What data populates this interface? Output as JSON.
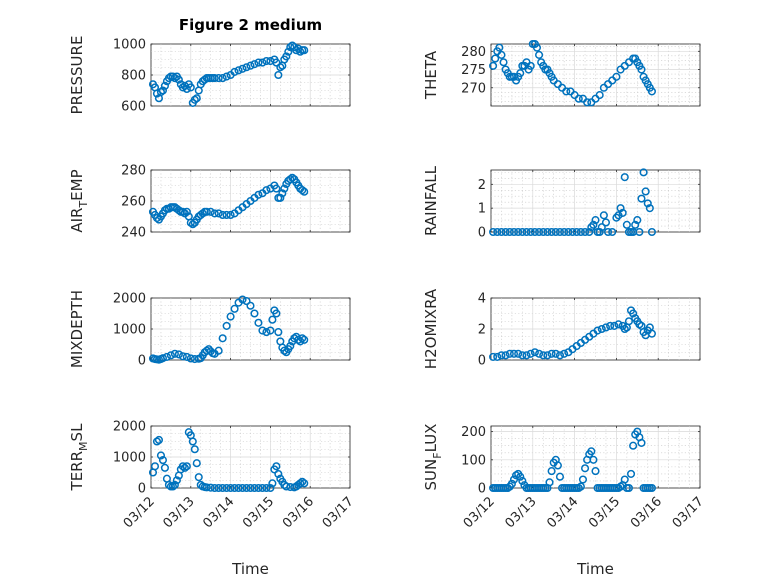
{
  "style": {
    "marker_color": "#0072BD",
    "axis_color": "#262626",
    "grid_color": "#d9d9d9"
  },
  "chart_data": [
    {
      "type": "scatter",
      "title": "Figure 2 medium",
      "ylabel": "PRESSURE",
      "xlabel": "",
      "ylim": [
        600,
        1000
      ],
      "yticks": [
        600,
        800,
        1000
      ],
      "xlim": [
        0,
        5
      ],
      "xticks": [
        "03/12",
        "03/13",
        "03/14",
        "03/15",
        "03/16",
        "03/17"
      ],
      "x": [
        0.05,
        0.1,
        0.15,
        0.2,
        0.25,
        0.3,
        0.35,
        0.4,
        0.45,
        0.5,
        0.55,
        0.6,
        0.65,
        0.7,
        0.75,
        0.8,
        0.85,
        0.9,
        0.95,
        1.0,
        1.05,
        1.1,
        1.15,
        1.2,
        1.25,
        1.3,
        1.35,
        1.4,
        1.45,
        1.5,
        1.55,
        1.6,
        1.7,
        1.8,
        1.9,
        2.0,
        2.1,
        2.2,
        2.3,
        2.4,
        2.5,
        2.6,
        2.7,
        2.8,
        2.9,
        3.0,
        3.1,
        3.15,
        3.2,
        3.25,
        3.3,
        3.35,
        3.4,
        3.45,
        3.5,
        3.55,
        3.6,
        3.65,
        3.7,
        3.75,
        3.8,
        3.85
      ],
      "y": [
        740,
        720,
        680,
        650,
        690,
        700,
        730,
        760,
        780,
        790,
        790,
        780,
        790,
        770,
        740,
        720,
        730,
        710,
        740,
        720,
        620,
        640,
        650,
        700,
        740,
        760,
        770,
        780,
        780,
        780,
        780,
        780,
        780,
        780,
        790,
        800,
        820,
        830,
        840,
        850,
        860,
        870,
        880,
        880,
        890,
        890,
        900,
        880,
        800,
        850,
        860,
        900,
        920,
        950,
        980,
        990,
        980,
        960,
        970,
        950,
        960,
        960
      ]
    },
    {
      "type": "scatter",
      "ylabel": "THETA",
      "xlabel": "",
      "ylim": [
        265,
        282
      ],
      "yticks": [
        270,
        275,
        280
      ],
      "xlim": [
        0,
        5
      ],
      "xticks": [
        "03/12",
        "03/13",
        "03/14",
        "03/15",
        "03/16",
        "03/17"
      ],
      "x": [
        0.05,
        0.1,
        0.15,
        0.2,
        0.25,
        0.3,
        0.35,
        0.4,
        0.45,
        0.5,
        0.55,
        0.6,
        0.65,
        0.7,
        0.75,
        0.8,
        0.85,
        0.9,
        0.95,
        1.0,
        1.05,
        1.1,
        1.15,
        1.2,
        1.25,
        1.3,
        1.35,
        1.4,
        1.45,
        1.5,
        1.6,
        1.7,
        1.8,
        1.9,
        2.0,
        2.1,
        2.2,
        2.3,
        2.4,
        2.5,
        2.6,
        2.7,
        2.8,
        2.9,
        3.0,
        3.1,
        3.2,
        3.3,
        3.4,
        3.45,
        3.5,
        3.55,
        3.6,
        3.65,
        3.7,
        3.75,
        3.8,
        3.85
      ],
      "y": [
        276,
        278,
        280,
        281,
        279,
        277,
        275,
        274,
        273,
        273,
        273,
        272,
        273,
        274,
        276,
        276,
        277,
        275,
        276,
        282,
        282,
        281,
        279,
        277,
        276,
        275,
        275,
        274,
        273,
        272,
        271,
        270,
        269,
        269,
        268,
        267,
        267,
        266,
        266,
        267,
        268,
        270,
        271,
        272,
        273,
        275,
        276,
        277,
        278,
        278,
        277,
        276,
        275,
        273,
        272,
        271,
        270,
        269
      ]
    },
    {
      "type": "scatter",
      "ylabel": "AIR_TEMP",
      "xlabel": "",
      "ylim": [
        240,
        280
      ],
      "yticks": [
        240,
        260,
        280
      ],
      "xlim": [
        0,
        5
      ],
      "xticks": [
        "03/12",
        "03/13",
        "03/14",
        "03/15",
        "03/16",
        "03/17"
      ],
      "x": [
        0.05,
        0.1,
        0.15,
        0.2,
        0.25,
        0.3,
        0.35,
        0.4,
        0.45,
        0.5,
        0.55,
        0.6,
        0.65,
        0.7,
        0.75,
        0.8,
        0.85,
        0.9,
        0.95,
        1.0,
        1.05,
        1.1,
        1.15,
        1.2,
        1.25,
        1.3,
        1.35,
        1.4,
        1.5,
        1.6,
        1.7,
        1.8,
        1.9,
        2.0,
        2.1,
        2.2,
        2.3,
        2.4,
        2.5,
        2.6,
        2.7,
        2.8,
        2.9,
        3.0,
        3.1,
        3.15,
        3.2,
        3.25,
        3.3,
        3.35,
        3.4,
        3.45,
        3.5,
        3.55,
        3.6,
        3.65,
        3.7,
        3.75,
        3.8,
        3.85
      ],
      "y": [
        253,
        251,
        249,
        248,
        250,
        252,
        254,
        255,
        255,
        256,
        256,
        256,
        255,
        254,
        253,
        253,
        252,
        253,
        250,
        246,
        245,
        246,
        248,
        250,
        251,
        252,
        253,
        253,
        253,
        252,
        252,
        251,
        251,
        251,
        252,
        254,
        256,
        258,
        260,
        262,
        264,
        265,
        267,
        268,
        270,
        268,
        262,
        262,
        265,
        268,
        271,
        273,
        274,
        275,
        274,
        272,
        270,
        268,
        267,
        266
      ]
    },
    {
      "type": "scatter",
      "ylabel": "RAINFALL",
      "xlabel": "",
      "ylim": [
        0,
        2.6
      ],
      "yticks": [
        0,
        1,
        2
      ],
      "xlim": [
        0,
        5
      ],
      "xticks": [
        "03/12",
        "03/13",
        "03/14",
        "03/15",
        "03/16",
        "03/17"
      ],
      "x": [
        0.05,
        0.15,
        0.25,
        0.35,
        0.45,
        0.55,
        0.65,
        0.75,
        0.85,
        0.95,
        1.05,
        1.15,
        1.25,
        1.35,
        1.45,
        1.55,
        1.65,
        1.75,
        1.85,
        1.95,
        2.05,
        2.15,
        2.25,
        2.35,
        2.4,
        2.45,
        2.5,
        2.55,
        2.6,
        2.65,
        2.7,
        2.75,
        2.8,
        2.9,
        3.0,
        3.05,
        3.1,
        3.15,
        3.2,
        3.25,
        3.3,
        3.35,
        3.4,
        3.45,
        3.5,
        3.55,
        3.6,
        3.65,
        3.7,
        3.75,
        3.8,
        3.85
      ],
      "y": [
        0,
        0,
        0,
        0,
        0,
        0,
        0,
        0,
        0,
        0,
        0,
        0,
        0,
        0,
        0,
        0,
        0,
        0,
        0,
        0,
        0,
        0,
        0,
        0,
        0.2,
        0.3,
        0.5,
        0,
        0,
        0.2,
        0.7,
        0.4,
        0,
        0,
        0.6,
        0.7,
        1.0,
        0.8,
        2.3,
        0.3,
        0,
        0,
        0,
        0.3,
        0.5,
        0,
        1.4,
        2.5,
        1.7,
        1.2,
        1.0,
        0
      ]
    },
    {
      "type": "scatter",
      "ylabel": "MIXDEPTH",
      "xlabel": "",
      "ylim": [
        0,
        2000
      ],
      "yticks": [
        0,
        1000,
        2000
      ],
      "xlim": [
        0,
        5
      ],
      "xticks": [
        "03/12",
        "03/13",
        "03/14",
        "03/15",
        "03/16",
        "03/17"
      ],
      "x": [
        0.05,
        0.1,
        0.15,
        0.2,
        0.25,
        0.3,
        0.4,
        0.5,
        0.6,
        0.7,
        0.8,
        0.9,
        1.0,
        1.1,
        1.2,
        1.25,
        1.3,
        1.35,
        1.4,
        1.45,
        1.5,
        1.55,
        1.6,
        1.7,
        1.8,
        1.9,
        2.0,
        2.1,
        2.2,
        2.3,
        2.4,
        2.5,
        2.6,
        2.7,
        2.8,
        2.9,
        3.0,
        3.05,
        3.1,
        3.15,
        3.2,
        3.25,
        3.3,
        3.35,
        3.4,
        3.45,
        3.5,
        3.55,
        3.6,
        3.65,
        3.7,
        3.75,
        3.8,
        3.85
      ],
      "y": [
        50,
        30,
        20,
        10,
        30,
        60,
        100,
        150,
        200,
        180,
        120,
        100,
        50,
        30,
        40,
        60,
        150,
        250,
        300,
        350,
        280,
        220,
        200,
        300,
        700,
        1100,
        1400,
        1650,
        1850,
        1950,
        1900,
        1750,
        1500,
        1200,
        950,
        900,
        950,
        1300,
        1600,
        1500,
        900,
        600,
        400,
        300,
        250,
        350,
        450,
        600,
        700,
        750,
        650,
        600,
        700,
        650
      ]
    },
    {
      "type": "scatter",
      "ylabel": "H2OMIXRA",
      "xlabel": "",
      "ylim": [
        0,
        4
      ],
      "yticks": [
        0,
        2,
        4
      ],
      "xlim": [
        0,
        5
      ],
      "xticks": [
        "03/12",
        "03/13",
        "03/14",
        "03/15",
        "03/16",
        "03/17"
      ],
      "x": [
        0.05,
        0.15,
        0.25,
        0.35,
        0.45,
        0.55,
        0.65,
        0.75,
        0.85,
        0.95,
        1.05,
        1.15,
        1.25,
        1.35,
        1.45,
        1.55,
        1.65,
        1.75,
        1.85,
        1.95,
        2.05,
        2.15,
        2.25,
        2.35,
        2.45,
        2.55,
        2.65,
        2.75,
        2.85,
        2.95,
        3.05,
        3.15,
        3.2,
        3.25,
        3.3,
        3.35,
        3.4,
        3.45,
        3.5,
        3.55,
        3.6,
        3.65,
        3.7,
        3.75,
        3.8,
        3.85
      ],
      "y": [
        0.2,
        0.2,
        0.3,
        0.3,
        0.4,
        0.4,
        0.4,
        0.3,
        0.3,
        0.4,
        0.5,
        0.4,
        0.3,
        0.3,
        0.4,
        0.4,
        0.3,
        0.4,
        0.5,
        0.7,
        0.9,
        1.1,
        1.3,
        1.5,
        1.7,
        1.9,
        2.0,
        2.1,
        2.2,
        2.2,
        2.3,
        2.2,
        2.0,
        2.1,
        2.5,
        3.2,
        3.0,
        2.7,
        2.5,
        2.3,
        2.2,
        1.8,
        1.6,
        1.9,
        2.1,
        1.7
      ]
    },
    {
      "type": "scatter",
      "ylabel": "TERR_MSL",
      "xlabel": "Time",
      "ylim": [
        0,
        2000
      ],
      "yticks": [
        0,
        1000,
        2000
      ],
      "xlim": [
        0,
        5
      ],
      "xticks": [
        "03/12",
        "03/13",
        "03/14",
        "03/15",
        "03/16",
        "03/17"
      ],
      "x": [
        0.05,
        0.1,
        0.15,
        0.2,
        0.25,
        0.3,
        0.35,
        0.4,
        0.45,
        0.5,
        0.55,
        0.6,
        0.65,
        0.7,
        0.75,
        0.8,
        0.85,
        0.9,
        0.95,
        1.0,
        1.05,
        1.1,
        1.15,
        1.2,
        1.25,
        1.3,
        1.35,
        1.4,
        1.5,
        1.6,
        1.7,
        1.8,
        1.9,
        2.0,
        2.1,
        2.2,
        2.3,
        2.4,
        2.5,
        2.6,
        2.7,
        2.8,
        2.9,
        3.0,
        3.05,
        3.1,
        3.15,
        3.2,
        3.25,
        3.3,
        3.35,
        3.4,
        3.5,
        3.6,
        3.65,
        3.7,
        3.75,
        3.8,
        3.85
      ],
      "y": [
        500,
        700,
        1500,
        1550,
        1050,
        900,
        650,
        300,
        100,
        50,
        50,
        100,
        250,
        400,
        600,
        700,
        650,
        700,
        1800,
        1700,
        1500,
        1250,
        800,
        350,
        100,
        50,
        30,
        20,
        10,
        0,
        0,
        0,
        0,
        0,
        0,
        0,
        0,
        0,
        0,
        0,
        0,
        0,
        0,
        0,
        150,
        600,
        700,
        450,
        300,
        200,
        100,
        50,
        30,
        20,
        50,
        100,
        150,
        200,
        150
      ]
    },
    {
      "type": "scatter",
      "ylabel": "SUN_FLUX",
      "xlabel": "Time",
      "ylim": [
        0,
        220
      ],
      "yticks": [
        0,
        100,
        200
      ],
      "xlim": [
        0,
        5
      ],
      "xticks": [
        "03/12",
        "03/13",
        "03/14",
        "03/15",
        "03/16",
        "03/17"
      ],
      "x": [
        0.05,
        0.1,
        0.15,
        0.2,
        0.25,
        0.3,
        0.35,
        0.4,
        0.45,
        0.5,
        0.55,
        0.6,
        0.65,
        0.7,
        0.75,
        0.8,
        0.85,
        0.9,
        0.95,
        1.0,
        1.05,
        1.1,
        1.15,
        1.2,
        1.25,
        1.3,
        1.35,
        1.4,
        1.45,
        1.5,
        1.55,
        1.6,
        1.65,
        1.7,
        1.75,
        1.8,
        1.85,
        1.9,
        1.95,
        2.0,
        2.05,
        2.1,
        2.15,
        2.2,
        2.25,
        2.3,
        2.35,
        2.4,
        2.45,
        2.5,
        2.55,
        2.6,
        2.65,
        2.7,
        2.75,
        2.8,
        2.85,
        2.9,
        2.95,
        3.0,
        3.05,
        3.1,
        3.15,
        3.2,
        3.25,
        3.3,
        3.35,
        3.4,
        3.45,
        3.5,
        3.55,
        3.6,
        3.65,
        3.7,
        3.75,
        3.8,
        3.85
      ],
      "y": [
        0,
        0,
        0,
        0,
        0,
        0,
        0,
        0,
        5,
        15,
        30,
        45,
        50,
        40,
        25,
        10,
        0,
        0,
        0,
        0,
        0,
        0,
        0,
        0,
        0,
        0,
        0,
        20,
        60,
        90,
        100,
        80,
        40,
        0,
        0,
        0,
        0,
        0,
        0,
        0,
        0,
        0,
        5,
        30,
        70,
        100,
        120,
        130,
        100,
        60,
        0,
        0,
        0,
        0,
        0,
        0,
        0,
        0,
        0,
        0,
        0,
        5,
        10,
        30,
        0,
        0,
        50,
        150,
        190,
        200,
        180,
        160,
        0,
        0,
        0,
        0,
        0
      ]
    }
  ]
}
